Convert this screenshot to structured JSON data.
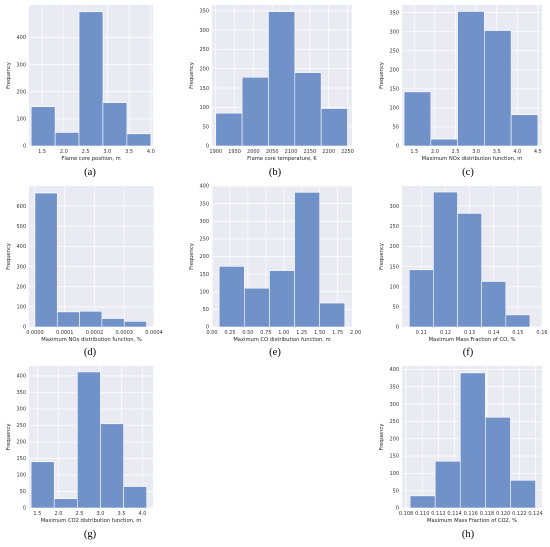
{
  "figure": {
    "background": "#ffffff",
    "panel_background": "#eaeaf2",
    "grid_color": "#ffffff",
    "bar_color": "#7191c9",
    "bar_edge": "#ffffff"
  },
  "chart_data": [
    {
      "type": "bar",
      "caption": "(a)",
      "xlabel": "Flame core position, m",
      "ylabel": "Frequency",
      "bin_edges": [
        1.25,
        1.8,
        2.35,
        2.9,
        3.45,
        4.0
      ],
      "values": [
        145,
        50,
        495,
        160,
        45
      ],
      "xlim": [
        1.2,
        4.05
      ],
      "ylim": [
        0,
        520
      ],
      "xticks": [
        1.5,
        2.0,
        2.5,
        3.0,
        3.5,
        4.0
      ],
      "xtick_labels": [
        "1.5",
        "2.0",
        "2.5",
        "3.0",
        "3.5",
        "4.0"
      ],
      "yticks": [
        0,
        100,
        200,
        300,
        400
      ],
      "ytick_labels": [
        "0",
        "100",
        "200",
        "300",
        "400"
      ],
      "grid": true
    },
    {
      "type": "bar",
      "caption": "(b)",
      "xlabel": "Flame core temperature, K",
      "ylabel": "Frequency",
      "bin_edges": [
        1900,
        1970,
        2040,
        2110,
        2180,
        2250
      ],
      "values": [
        85,
        178,
        348,
        190,
        97
      ],
      "xlim": [
        1890,
        2262
      ],
      "ylim": [
        0,
        365
      ],
      "xticks": [
        1900,
        1950,
        2000,
        2050,
        2100,
        2150,
        2200,
        2250
      ],
      "xtick_labels": [
        "1900",
        "1950",
        "2000",
        "2050",
        "2100",
        "2150",
        "2200",
        "2250"
      ],
      "yticks": [
        0,
        50,
        100,
        150,
        200,
        250,
        300,
        350
      ],
      "ytick_labels": [
        "0",
        "50",
        "100",
        "150",
        "200",
        "250",
        "300",
        "350"
      ],
      "grid": true
    },
    {
      "type": "bar",
      "caption": "(c)",
      "xlabel": "Maximum NOx distribution function, m",
      "ylabel": "Frequency",
      "bin_edges": [
        1.25,
        1.9,
        2.55,
        3.2,
        3.85,
        4.5
      ],
      "values": [
        142,
        18,
        353,
        303,
        82
      ],
      "xlim": [
        1.2,
        4.6
      ],
      "ylim": [
        0,
        370
      ],
      "xticks": [
        1.5,
        2.0,
        2.5,
        3.0,
        3.5,
        4.0,
        4.5
      ],
      "xtick_labels": [
        "1.5",
        "2.0",
        "2.5",
        "3.0",
        "3.5",
        "4.0",
        "4.5"
      ],
      "yticks": [
        0,
        50,
        100,
        150,
        200,
        250,
        300,
        350
      ],
      "ytick_labels": [
        "0",
        "50",
        "100",
        "150",
        "200",
        "250",
        "300",
        "350"
      ],
      "grid": true
    },
    {
      "type": "bar",
      "caption": "(d)",
      "xlabel": "Maximum NOx distribution function, %",
      "ylabel": "Frequency",
      "bin_edges": [
        0.0,
        7.5e-05,
        0.00015,
        0.000225,
        0.0003,
        0.000375
      ],
      "values": [
        665,
        75,
        78,
        42,
        28
      ],
      "xlim": [
        -2e-05,
        0.0004
      ],
      "ylim": [
        0,
        700
      ],
      "xticks": [
        0.0,
        0.0001,
        0.0002,
        0.0003,
        0.0004
      ],
      "xtick_labels": [
        "0.0000",
        "0.0001",
        "0.0002",
        "0.0003",
        "0.0004"
      ],
      "yticks": [
        0,
        100,
        200,
        300,
        400,
        500,
        600
      ],
      "ytick_labels": [
        "0",
        "100",
        "200",
        "300",
        "400",
        "500",
        "600"
      ],
      "grid": true
    },
    {
      "type": "bar",
      "caption": "(e)",
      "xlabel": "Maximum CO distribution function, m",
      "ylabel": "Frequency",
      "bin_edges": [
        0.1,
        0.45,
        0.8,
        1.15,
        1.5,
        1.85
      ],
      "values": [
        172,
        110,
        160,
        382,
        68
      ],
      "xlim": [
        0.0,
        1.95
      ],
      "ylim": [
        0,
        400
      ],
      "xticks": [
        0.0,
        0.25,
        0.5,
        0.75,
        1.0,
        1.25,
        1.5,
        1.75,
        2.0
      ],
      "xtick_labels": [
        "0.00",
        "0.25",
        "0.50",
        "0.75",
        "1.00",
        "1.25",
        "1.50",
        "1.75",
        "2.00"
      ],
      "yticks": [
        0,
        50,
        100,
        150,
        200,
        250,
        300,
        350,
        400
      ],
      "ytick_labels": [
        "0",
        "50",
        "100",
        "150",
        "200",
        "250",
        "300",
        "350",
        "400"
      ],
      "grid": true
    },
    {
      "type": "bar",
      "caption": "(f)",
      "xlabel": "Maximum Mass Fraction of CO, %",
      "ylabel": "Frequency",
      "bin_edges": [
        0.105,
        0.115,
        0.125,
        0.135,
        0.145,
        0.155
      ],
      "values": [
        142,
        335,
        282,
        113,
        30
      ],
      "xlim": [
        0.102,
        0.16
      ],
      "ylim": [
        0,
        350
      ],
      "xticks": [
        0.11,
        0.12,
        0.13,
        0.14,
        0.15,
        0.16
      ],
      "xtick_labels": [
        "0.11",
        "0.12",
        "0.13",
        "0.14",
        "0.15",
        "0.16"
      ],
      "yticks": [
        0,
        50,
        100,
        150,
        200,
        250,
        300
      ],
      "ytick_labels": [
        "0",
        "50",
        "100",
        "150",
        "200",
        "250",
        "300"
      ],
      "grid": true
    },
    {
      "type": "bar",
      "caption": "(g)",
      "xlabel": "Maximum CO2 distribution function, m",
      "ylabel": "Frequency",
      "bin_edges": [
        1.35,
        1.9,
        2.45,
        3.0,
        3.55,
        4.1
      ],
      "values": [
        140,
        28,
        412,
        255,
        65
      ],
      "xlim": [
        1.3,
        4.25
      ],
      "ylim": [
        0,
        430
      ],
      "xticks": [
        1.5,
        2.0,
        2.5,
        3.0,
        3.5,
        4.0
      ],
      "xtick_labels": [
        "1.5",
        "2.0",
        "2.5",
        "3.0",
        "3.5",
        "4.0"
      ],
      "yticks": [
        0,
        50,
        100,
        150,
        200,
        250,
        300,
        350,
        400
      ],
      "ytick_labels": [
        "0",
        "50",
        "100",
        "150",
        "200",
        "250",
        "300",
        "350",
        "400"
      ],
      "grid": true
    },
    {
      "type": "bar",
      "caption": "(h)",
      "xlabel": "Maximum Mass Fraction of CO2, %",
      "ylabel": "Frequency",
      "bin_edges": [
        0.1085,
        0.1116,
        0.1147,
        0.1178,
        0.1209,
        0.124
      ],
      "values": [
        35,
        135,
        390,
        262,
        80
      ],
      "xlim": [
        0.1075,
        0.1248
      ],
      "ylim": [
        0,
        410
      ],
      "xticks": [
        0.108,
        0.11,
        0.112,
        0.114,
        0.116,
        0.118,
        0.12,
        0.122,
        0.124
      ],
      "xtick_labels": [
        "0.108",
        "0.110",
        "0.112",
        "0.114",
        "0.116",
        "0.118",
        "0.120",
        "0.122",
        "0.124"
      ],
      "yticks": [
        0,
        50,
        100,
        150,
        200,
        250,
        300,
        350,
        400
      ],
      "ytick_labels": [
        "0",
        "50",
        "100",
        "150",
        "200",
        "250",
        "300",
        "350",
        "400"
      ],
      "grid": true
    }
  ]
}
